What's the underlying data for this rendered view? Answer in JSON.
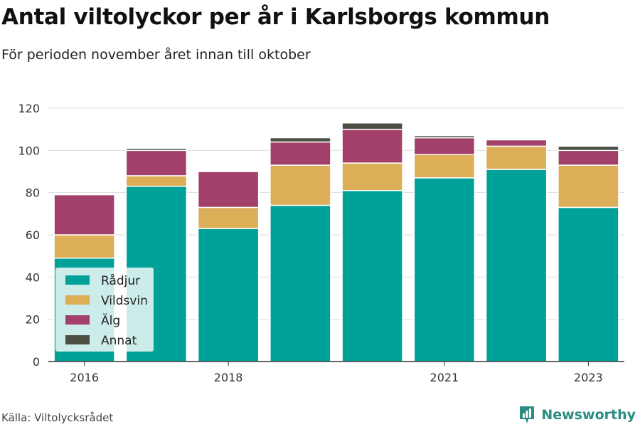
{
  "header": {
    "title": "Antal viltolyckor per år i Karlsborgs kommun",
    "subtitle": "För perioden november året innan till oktober"
  },
  "footer": {
    "source": "Källa: Viltolycksrådet",
    "brand": "Newsworthy",
    "brand_icon": "bar-chart-logo-icon",
    "brand_color": "#2a8c82"
  },
  "chart_data": {
    "type": "bar",
    "stacked": true,
    "title": "Antal viltolyckor per år i Karlsborgs kommun",
    "subtitle": "För perioden november året innan till oktober",
    "categories": [
      "2016",
      "2017",
      "2018",
      "2019",
      "2020",
      "2021",
      "2022",
      "2023"
    ],
    "x_tick_labels": [
      "2016",
      "",
      "2018",
      "",
      "",
      "2021",
      "",
      "2023"
    ],
    "series": [
      {
        "name": "Rådjur",
        "color": "#00a198",
        "values": [
          49,
          83,
          63,
          74,
          81,
          87,
          91,
          73
        ]
      },
      {
        "name": "Vildsvin",
        "color": "#dcae58",
        "values": [
          11,
          5,
          10,
          19,
          13,
          11,
          11,
          20
        ]
      },
      {
        "name": "Älg",
        "color": "#a3406a",
        "values": [
          19,
          12,
          17,
          11,
          16,
          8,
          3,
          7
        ]
      },
      {
        "name": "Annat",
        "color": "#4a4e43",
        "values": [
          0,
          1,
          0,
          2,
          3,
          1,
          0,
          2
        ]
      }
    ],
    "ylim": [
      0,
      120
    ],
    "yticks": [
      0,
      20,
      40,
      60,
      80,
      100,
      120
    ],
    "grid": true,
    "legend": "bottom-left"
  }
}
